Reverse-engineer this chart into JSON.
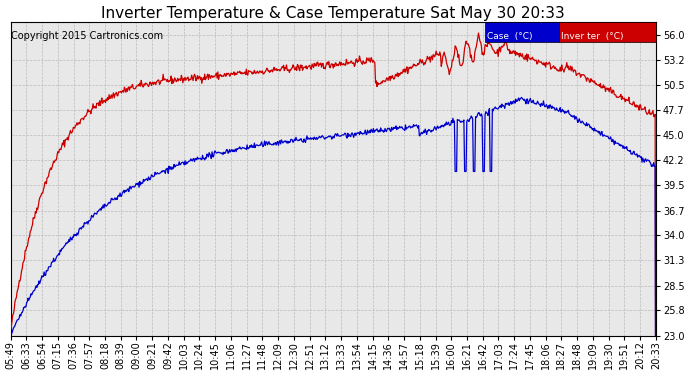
{
  "title": "Inverter Temperature & Case Temperature Sat May 30 20:33",
  "copyright": "Copyright 2015 Cartronics.com",
  "legend_case_label": "Case  (°C)",
  "legend_inverter_label": "Inver ter  (°C)",
  "case_color": "#0000cc",
  "inverter_color": "#cc0000",
  "bg_color": "#ffffff",
  "plot_bg_color": "#e8e8e8",
  "grid_color": "#bbbbbb",
  "ylim": [
    23.0,
    57.4
  ],
  "yticks": [
    23.0,
    25.8,
    28.5,
    31.3,
    34.0,
    36.7,
    39.5,
    42.2,
    45.0,
    47.7,
    50.5,
    53.2,
    56.0
  ],
  "title_fontsize": 11,
  "copyright_fontsize": 7,
  "tick_fontsize": 7,
  "xtick_labels": [
    "05:49",
    "06:33",
    "06:54",
    "07:15",
    "07:36",
    "07:57",
    "08:18",
    "08:39",
    "09:00",
    "09:21",
    "09:42",
    "10:03",
    "10:24",
    "10:45",
    "11:06",
    "11:27",
    "11:48",
    "12:09",
    "12:30",
    "12:51",
    "13:12",
    "13:33",
    "13:54",
    "14:15",
    "14:36",
    "14:57",
    "15:18",
    "15:39",
    "16:00",
    "16:21",
    "16:42",
    "17:03",
    "17:24",
    "17:45",
    "18:06",
    "18:27",
    "18:48",
    "19:09",
    "19:30",
    "19:51",
    "20:12",
    "20:33"
  ]
}
